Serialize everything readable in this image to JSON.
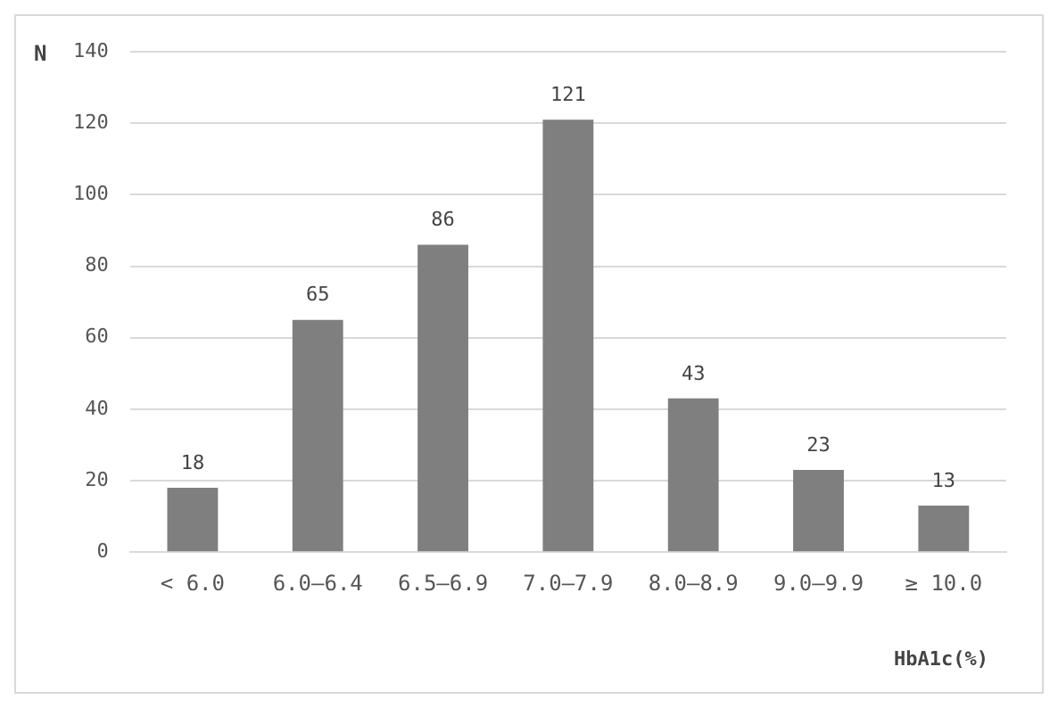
{
  "chart_data": {
    "type": "bar",
    "xlabel": "HbA1c(%)",
    "ylabel": "N",
    "categories": [
      "< 6.0",
      "6.0–6.4",
      "6.5–6.9",
      "7.0–7.9",
      "8.0–8.9",
      "9.0–9.9",
      "≥ 10.0"
    ],
    "values": [
      18,
      65,
      86,
      121,
      43,
      23,
      13
    ],
    "color": "#7f7f7f",
    "ylim": [
      0,
      140
    ],
    "yticks": [
      0,
      20,
      40,
      60,
      80,
      100,
      120,
      140
    ],
    "grid": "y",
    "data_labels": true,
    "legend": false
  }
}
